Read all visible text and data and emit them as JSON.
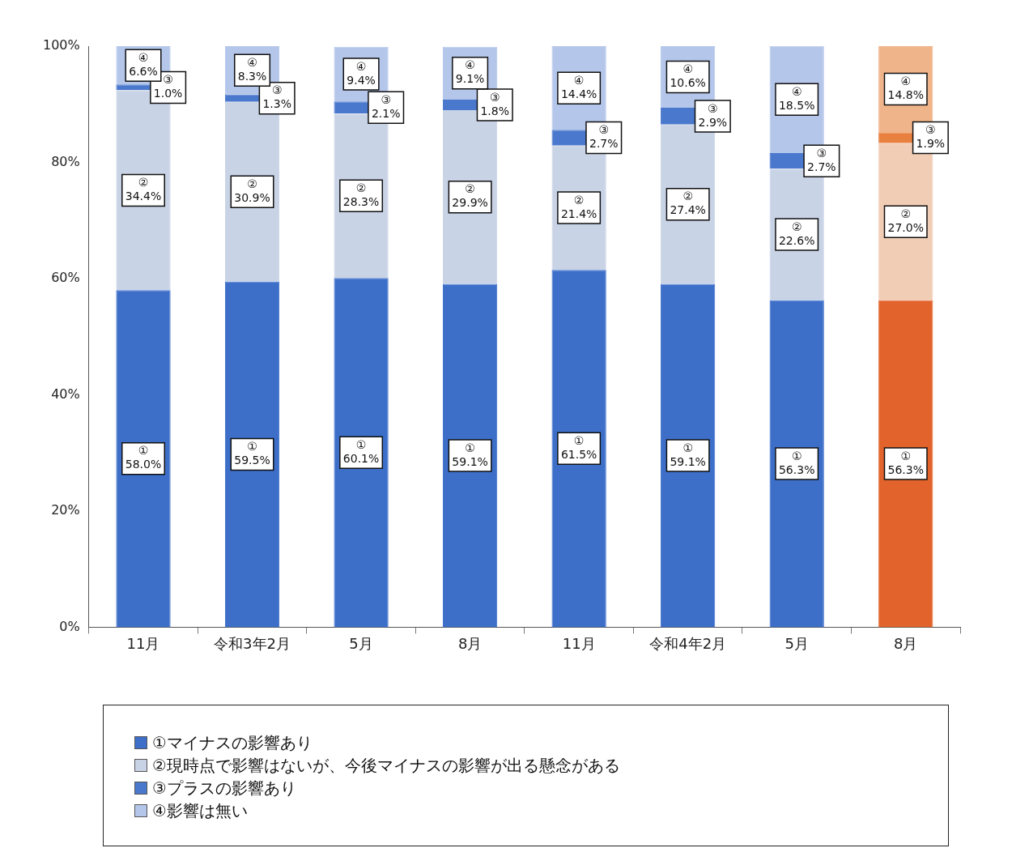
{
  "chart_data": {
    "type": "bar",
    "stacked": true,
    "categories": [
      "11月",
      "令和3年2月",
      "5月",
      "8月",
      "11月",
      "令和4年2月",
      "5月",
      "8月"
    ],
    "series": [
      {
        "name": "①マイナスの影響あり",
        "colors": [
          "#3d6fc9",
          "#3d6fc9",
          "#3d6fc9",
          "#3d6fc9",
          "#3d6fc9",
          "#3d6fc9",
          "#3d6fc9",
          "#e2632b"
        ],
        "values": [
          58.0,
          59.5,
          60.1,
          59.1,
          61.5,
          59.1,
          56.3,
          56.3
        ],
        "value_labels": [
          "①\n58.0%",
          "①\n59.5%",
          "①\n60.1%",
          "①\n59.1%",
          "①\n61.5%",
          "①\n59.1%",
          "①\n56.3%",
          "①\n56.3%"
        ]
      },
      {
        "name": "②現時点で影響はないが、今後マイナスの影響が出る懸念がある",
        "colors": [
          "#c9d3e6",
          "#c9d3e6",
          "#c9d3e6",
          "#c9d3e6",
          "#c9d3e6",
          "#c9d3e6",
          "#c9d3e6",
          "#f1cdb5"
        ],
        "values": [
          34.4,
          30.9,
          28.3,
          29.9,
          21.4,
          27.4,
          22.6,
          27.0
        ],
        "value_labels": [
          "②\n34.4%",
          "②\n30.9%",
          "②\n28.3%",
          "②\n29.9%",
          "②\n21.4%",
          "②\n27.4%",
          "②\n22.6%",
          "②\n27.0%"
        ]
      },
      {
        "name": "③プラスの影響あり",
        "colors": [
          "#4a78cc",
          "#4a78cc",
          "#4a78cc",
          "#4a78cc",
          "#4a78cc",
          "#4a78cc",
          "#4a78cc",
          "#e8803f"
        ],
        "values": [
          1.0,
          1.3,
          2.1,
          1.8,
          2.7,
          2.9,
          2.7,
          1.9
        ],
        "value_labels": [
          "③\n1.0%",
          "③\n1.3%",
          "③\n2.1%",
          "③\n1.8%",
          "③\n2.7%",
          "③\n2.9%",
          "③\n2.7%",
          "③\n1.9%"
        ]
      },
      {
        "name": "④影響は無い",
        "colors": [
          "#b4c6ea",
          "#b4c6ea",
          "#b4c6ea",
          "#b4c6ea",
          "#b4c6ea",
          "#b4c6ea",
          "#b4c6ea",
          "#f0b48a"
        ],
        "values": [
          6.6,
          8.3,
          9.4,
          9.1,
          14.4,
          10.6,
          18.5,
          14.8
        ],
        "value_labels": [
          "④\n6.6%",
          "④\n8.3%",
          "④\n9.4%",
          "④\n9.1%",
          "④\n14.4%",
          "④\n10.6%",
          "④\n18.5%",
          "④\n14.8%"
        ]
      }
    ],
    "ylim": [
      0,
      100
    ],
    "yticks": [
      {
        "value": 0,
        "label": "0%"
      },
      {
        "value": 20,
        "label": "20%"
      },
      {
        "value": 40,
        "label": "40%"
      },
      {
        "value": 60,
        "label": "60%"
      },
      {
        "value": 80,
        "label": "80%"
      },
      {
        "value": 100,
        "label": "100%"
      }
    ],
    "grid": false,
    "legend": "bottom"
  }
}
